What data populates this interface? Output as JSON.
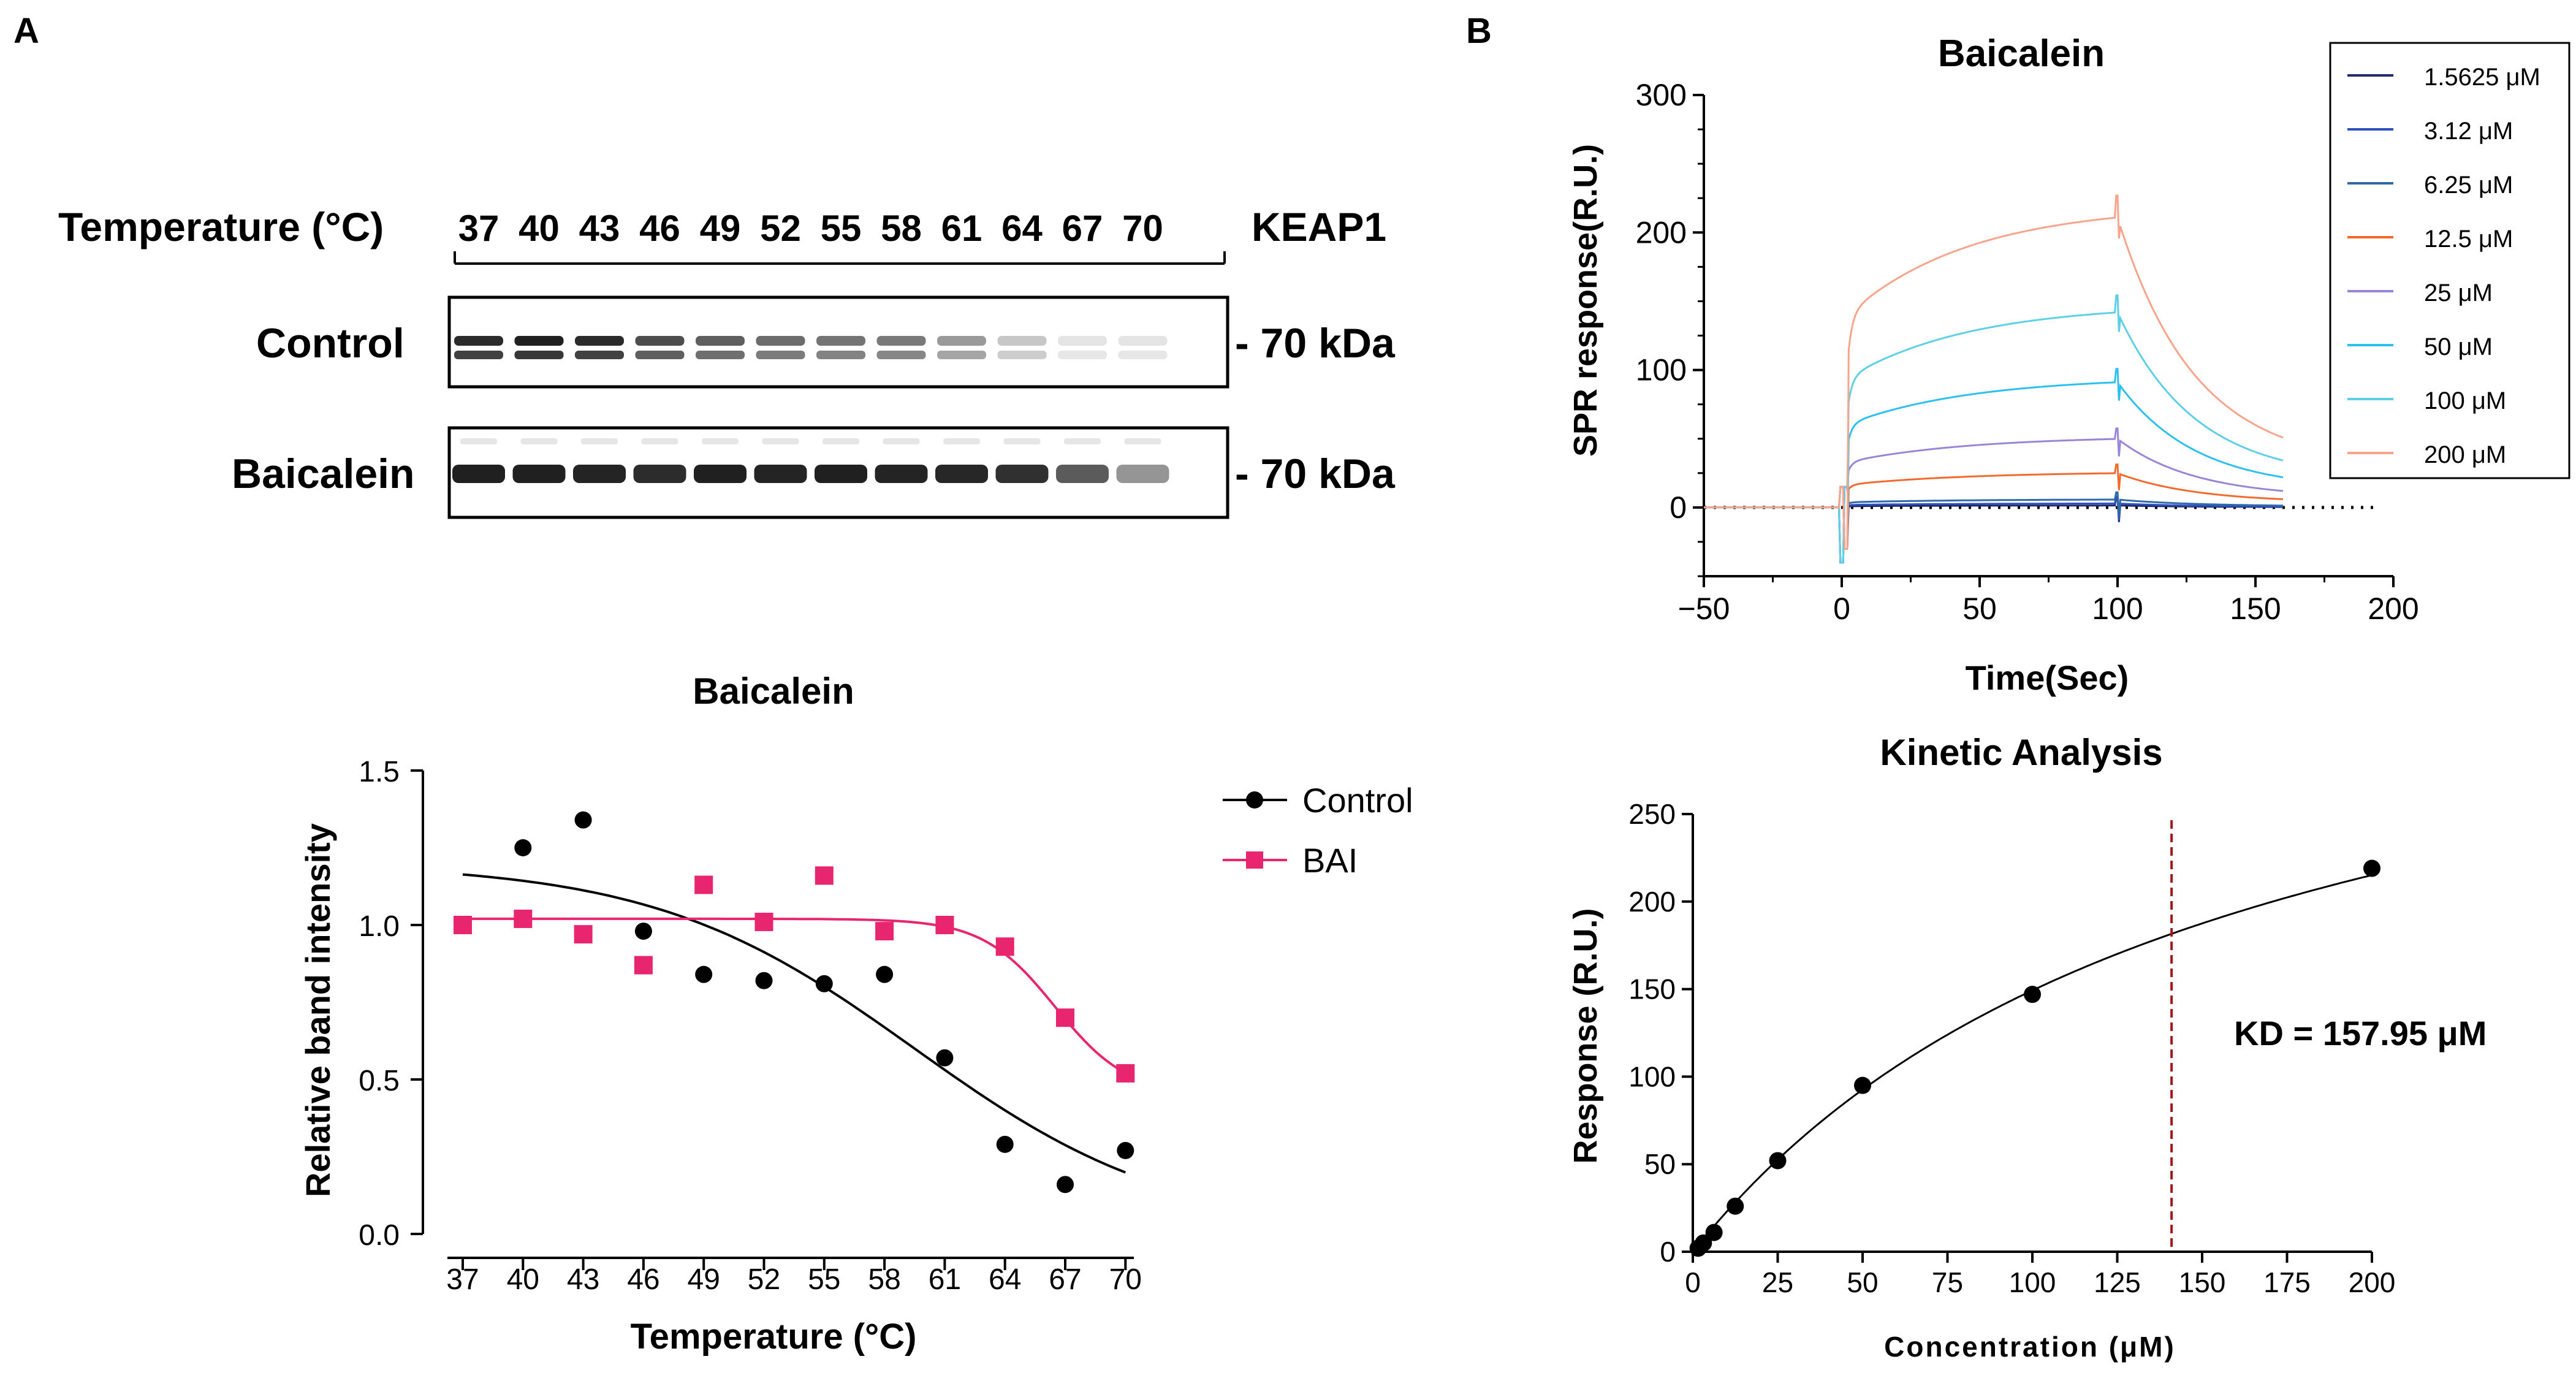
{
  "panels": {
    "a": "A",
    "b": "B"
  },
  "western_blot": {
    "header_label": "Temperature (°C)",
    "temperatures": [
      "37",
      "40",
      "43",
      "46",
      "49",
      "52",
      "55",
      "58",
      "61",
      "64",
      "67",
      "70"
    ],
    "protein": "KEAP1",
    "rows": [
      {
        "label": "Control",
        "marker": "- 70 kDa",
        "intensities": [
          0.95,
          1.0,
          0.95,
          0.8,
          0.72,
          0.66,
          0.62,
          0.6,
          0.45,
          0.25,
          0.12,
          0.12
        ]
      },
      {
        "label": "Baicalein",
        "marker": "- 70 kDa",
        "intensities": [
          0.95,
          0.95,
          0.93,
          0.9,
          0.95,
          0.93,
          0.95,
          0.93,
          0.92,
          0.88,
          0.7,
          0.45
        ]
      }
    ]
  },
  "chart_data": [
    {
      "id": "cetsa",
      "type": "scatter",
      "title": "Baicalein",
      "xlabel": "Temperature (°C)",
      "ylabel": "Relative band intensity",
      "x": [
        37,
        40,
        43,
        46,
        49,
        52,
        55,
        58,
        61,
        64,
        67,
        70
      ],
      "ylim": [
        0,
        1.5
      ],
      "yticks": [
        "0.0",
        "0.5",
        "1.0",
        "1.5"
      ],
      "series": [
        {
          "name": "Control",
          "marker": "circle",
          "color": "#000000",
          "values": [
            1.0,
            1.25,
            1.34,
            0.98,
            0.84,
            0.82,
            0.81,
            0.84,
            0.57,
            0.29,
            0.16,
            0.27
          ],
          "fit": {
            "top": 1.2,
            "bottom": 0.0,
            "t50": 59.5,
            "slope": 6.5
          }
        },
        {
          "name": "BAI",
          "marker": "square",
          "color": "#e8266f",
          "values": [
            1.0,
            1.02,
            0.97,
            0.87,
            1.13,
            1.01,
            1.16,
            0.98,
            1.0,
            0.93,
            0.7,
            0.52
          ],
          "fit": {
            "top": 1.02,
            "bottom": 0.45,
            "t50": 66.5,
            "slope": 1.8
          }
        }
      ],
      "legend": "top-right"
    },
    {
      "id": "spr",
      "type": "line",
      "title": "Baicalein",
      "xlabel": "Time(Sec)",
      "ylabel": "SPR response(R.U.)",
      "xlim": [
        -50,
        200
      ],
      "ylim": [
        -50,
        300
      ],
      "xticks": [
        "-50",
        "0",
        "50",
        "100",
        "150",
        "200"
      ],
      "yticks": [
        "0",
        "100",
        "200",
        "300"
      ],
      "series": [
        {
          "name": "1.5625 μM",
          "color": "#1f2a6b",
          "plateau": 1.5
        },
        {
          "name": "3.12 μM",
          "color": "#2f4fbf",
          "plateau": 3
        },
        {
          "name": "6.25 μM",
          "color": "#2e6aa8",
          "plateau": 6
        },
        {
          "name": "12.5 μM",
          "color": "#f26a2e",
          "plateau": 26
        },
        {
          "name": "25 μM",
          "color": "#9a86d6",
          "plateau": 52
        },
        {
          "name": "50 μM",
          "color": "#2cc0ee",
          "plateau": 95
        },
        {
          "name": "100 μM",
          "color": "#5ed0e6",
          "plateau": 148
        },
        {
          "name": "200 μM",
          "color": "#f7a48c",
          "plateau": 220
        }
      ],
      "legend": "top-right"
    },
    {
      "id": "kinetic",
      "type": "scatter",
      "title": "Kinetic Analysis",
      "xlabel": "Concentration (μM)",
      "ylabel": "Response (R.U.)",
      "xlim": [
        0,
        200
      ],
      "ylim": [
        0,
        250
      ],
      "xticks": [
        "0",
        "25",
        "50",
        "75",
        "100",
        "125",
        "150",
        "175",
        "200"
      ],
      "yticks": [
        "0",
        "50",
        "100",
        "150",
        "200",
        "250"
      ],
      "points": {
        "x": [
          1.5625,
          3.125,
          6.25,
          12.5,
          25,
          50,
          100,
          200
        ],
        "y": [
          2,
          5,
          11,
          26,
          52,
          95,
          147,
          219
        ]
      },
      "fit": {
        "rmax": 385,
        "kd": 157.95
      },
      "kd_line_x": 141,
      "annotation": "KD = 157.95 μM"
    }
  ]
}
